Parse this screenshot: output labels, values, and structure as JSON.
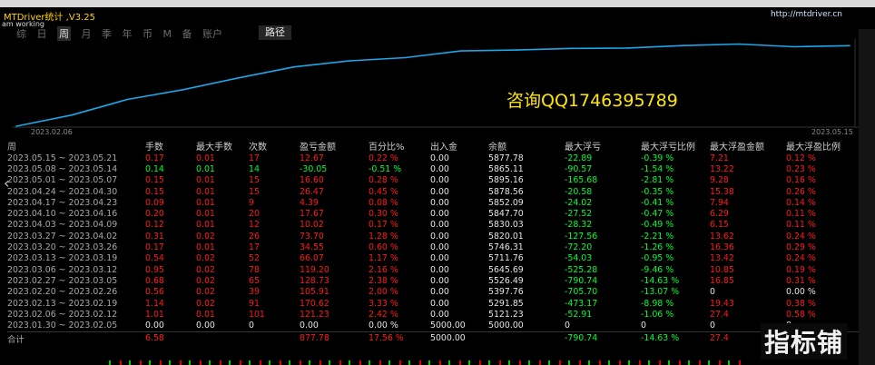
{
  "app": {
    "title": "MTDriver统计 ,V3.25",
    "url": "http://mtdriver.cn",
    "status": "am working"
  },
  "tabs": [
    {
      "label": "综",
      "active": false
    },
    {
      "label": "日",
      "active": false
    },
    {
      "label": "周",
      "active": true
    },
    {
      "label": "月",
      "active": false
    },
    {
      "label": "季",
      "active": false
    },
    {
      "label": "年",
      "active": false
    },
    {
      "label": "币",
      "active": false
    },
    {
      "label": "M",
      "active": false
    },
    {
      "label": "备",
      "active": false
    },
    {
      "label": "账户",
      "active": false
    }
  ],
  "route_label": "路径",
  "overlay_text": "咨询QQ1746395789",
  "watermark": "指标铺",
  "colors": {
    "green": "#00ff33",
    "red": "#ff1a1a",
    "line": "#1da6e8",
    "white": "#e6e6e6"
  },
  "chart_data": {
    "type": "line",
    "x_start_label": "2023.02.06",
    "x_end_label": "2023.05.15",
    "x": [
      "2023.01.30",
      "2023.02.06",
      "2023.02.13",
      "2023.02.20",
      "2023.02.27",
      "2023.03.06",
      "2023.03.13",
      "2023.03.20",
      "2023.03.27",
      "2023.04.03",
      "2023.04.10",
      "2023.04.17",
      "2023.04.24",
      "2023.05.01",
      "2023.05.08",
      "2023.05.15"
    ],
    "values": [
      5000.0,
      5121.23,
      5291.85,
      5397.76,
      5526.49,
      5645.69,
      5711.76,
      5746.31,
      5820.01,
      5830.03,
      5847.7,
      5852.09,
      5878.56,
      5895.16,
      5865.11,
      5877.78
    ],
    "ylim": [
      5000,
      5910
    ]
  },
  "table": {
    "headers": [
      "周",
      "手数",
      "最大手数",
      "次数",
      "盈亏金额",
      "百分比%",
      "出入金",
      "余额",
      "最大浮亏",
      "最大浮亏比例",
      "最大浮盈金额",
      "最大浮盈比例"
    ],
    "rows": [
      [
        "2023.05.15 ~ 2023.05.21",
        "0.17",
        "0.01",
        "17",
        "12.67",
        "0.22 %",
        "0.00",
        "5877.78",
        "-22.89",
        "-0.39 %",
        "7.21",
        "0.12 %"
      ],
      [
        "2023.05.08 ~ 2023.05.14",
        "0.14",
        "0.01",
        "14",
        "-30.05",
        "-0.51 %",
        "0.00",
        "5865.11",
        "-90.57",
        "-1.54 %",
        "13.22",
        "0.23 %"
      ],
      [
        "2023.05.01 ~ 2023.05.07",
        "0.15",
        "0.01",
        "15",
        "16.60",
        "0.28 %",
        "0.00",
        "5895.16",
        "-165.68",
        "-2.81 %",
        "9.28",
        "0.16 %"
      ],
      [
        "2023.04.24 ~ 2023.04.30",
        "0.15",
        "0.01",
        "15",
        "26.47",
        "0.45 %",
        "0.00",
        "5878.56",
        "-20.58",
        "-0.35 %",
        "15.38",
        "0.26 %"
      ],
      [
        "2023.04.17 ~ 2023.04.23",
        "0.09",
        "0.01",
        "9",
        "4.39",
        "0.08 %",
        "0.00",
        "5852.09",
        "-24.02",
        "-0.41 %",
        "7.94",
        "0.14 %"
      ],
      [
        "2023.04.10 ~ 2023.04.16",
        "0.20",
        "0.01",
        "20",
        "17.67",
        "0.30 %",
        "0.00",
        "5847.70",
        "-27.52",
        "-0.47 %",
        "6.29",
        "0.11 %"
      ],
      [
        "2023.04.03 ~ 2023.04.09",
        "0.12",
        "0.01",
        "12",
        "10.02",
        "0.17 %",
        "0.00",
        "5830.03",
        "-28.32",
        "-0.49 %",
        "6.15",
        "0.11 %"
      ],
      [
        "2023.03.27 ~ 2023.04.02",
        "0.31",
        "0.02",
        "26",
        "73.70",
        "1.28 %",
        "0.00",
        "5820.01",
        "-127.56",
        "-2.21 %",
        "13.62",
        "0.24 %"
      ],
      [
        "2023.03.20 ~ 2023.03.26",
        "0.17",
        "0.01",
        "17",
        "34.55",
        "0.60 %",
        "0.00",
        "5746.31",
        "-72.20",
        "-1.26 %",
        "16.36",
        "0.29 %"
      ],
      [
        "2023.03.13 ~ 2023.03.19",
        "0.54",
        "0.02",
        "52",
        "66.07",
        "1.17 %",
        "0.00",
        "5711.76",
        "-54.03",
        "-0.95 %",
        "13.42",
        "0.24 %"
      ],
      [
        "2023.03.06 ~ 2023.03.12",
        "0.95",
        "0.02",
        "78",
        "119.20",
        "2.16 %",
        "0.00",
        "5645.69",
        "-525.28",
        "-9.46 %",
        "10.85",
        "0.19 %"
      ],
      [
        "2023.02.27 ~ 2023.03.05",
        "0.68",
        "0.02",
        "65",
        "128.73",
        "2.38 %",
        "0.00",
        "5526.49",
        "-790.74",
        "-14.63 %",
        "16.85",
        "0.31 %"
      ],
      [
        "2023.02.20 ~ 2023.02.26",
        "0.56",
        "0.02",
        "39",
        "105.91",
        "2.00 %",
        "0.00",
        "5397.76",
        "-705.70",
        "-13.07 %",
        "0",
        "0.00 %"
      ],
      [
        "2023.02.13 ~ 2023.02.19",
        "1.14",
        "0.02",
        "91",
        "170.62",
        "3.33 %",
        "0.00",
        "5291.85",
        "-473.17",
        "-8.98 %",
        "19.43",
        "0.38 %"
      ],
      [
        "2023.02.06 ~ 2023.02.12",
        "1.01",
        "0.01",
        "101",
        "121.23",
        "2.42 %",
        "0.00",
        "5121.23",
        "-52.91",
        "-1.06 %",
        "27.4",
        "0.58 %"
      ],
      [
        "2023.01.30 ~ 2023.02.05",
        "0.00",
        "0.00",
        "0",
        "0.00",
        "0.00 %",
        "5000.00",
        "5000.00",
        "0",
        "0",
        "0",
        "0"
      ]
    ],
    "total": [
      "合计",
      "6.58",
      "",
      "",
      "877.78",
      "17.56 %",
      "5000.00",
      "",
      "-790.74",
      "-14.63 %",
      "27.4",
      ""
    ]
  }
}
